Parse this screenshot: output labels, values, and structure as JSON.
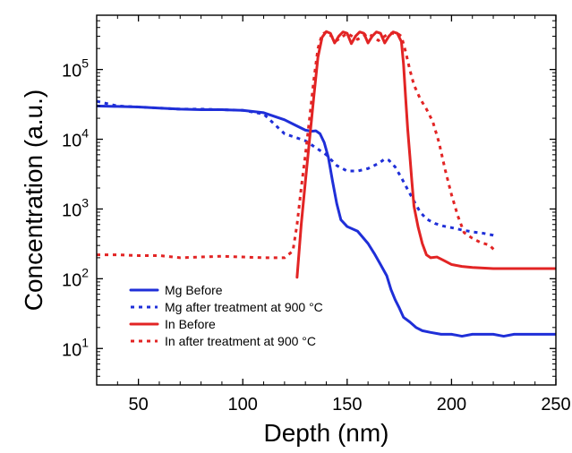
{
  "chart_data": {
    "type": "line",
    "xlabel": "Depth (nm)",
    "ylabel": "Concentration (a.u.)",
    "xlim": [
      30,
      250
    ],
    "ylim": [
      3,
      600000
    ],
    "yscale": "log",
    "grid": false,
    "legend_position": "bottom-left",
    "x_ticks": [
      50,
      100,
      150,
      200,
      250
    ],
    "x_tick_labels": [
      "50",
      "100",
      "150",
      "200",
      "250"
    ],
    "y_ticks": [
      {
        "value": 10,
        "base": "10",
        "exp": "1"
      },
      {
        "value": 100,
        "base": "10",
        "exp": "2"
      },
      {
        "value": 1000,
        "base": "10",
        "exp": "3"
      },
      {
        "value": 10000,
        "base": "10",
        "exp": "4"
      },
      {
        "value": 100000,
        "base": "10",
        "exp": "5"
      }
    ],
    "series": [
      {
        "name": "Mg Before",
        "color": "#1f2fd8",
        "dash": "solid",
        "points": [
          [
            30,
            30000
          ],
          [
            40,
            29500
          ],
          [
            50,
            29000
          ],
          [
            60,
            28000
          ],
          [
            70,
            27000
          ],
          [
            80,
            26500
          ],
          [
            90,
            26500
          ],
          [
            100,
            26000
          ],
          [
            110,
            24000
          ],
          [
            120,
            19000
          ],
          [
            125,
            16000
          ],
          [
            130,
            13500
          ],
          [
            133,
            13000
          ],
          [
            135,
            13200
          ],
          [
            137,
            12000
          ],
          [
            139,
            9000
          ],
          [
            141,
            5500
          ],
          [
            143,
            2500
          ],
          [
            145,
            1200
          ],
          [
            147,
            700
          ],
          [
            150,
            560
          ],
          [
            155,
            480
          ],
          [
            160,
            320
          ],
          [
            163,
            230
          ],
          [
            166,
            160
          ],
          [
            169,
            110
          ],
          [
            171,
            70
          ],
          [
            173,
            50
          ],
          [
            175,
            38
          ],
          [
            177,
            28
          ],
          [
            180,
            24
          ],
          [
            183,
            20
          ],
          [
            186,
            18
          ],
          [
            190,
            17
          ],
          [
            195,
            16
          ],
          [
            200,
            16
          ],
          [
            205,
            15
          ],
          [
            210,
            16
          ],
          [
            215,
            16
          ],
          [
            220,
            16
          ],
          [
            225,
            15
          ],
          [
            230,
            16
          ],
          [
            235,
            16
          ],
          [
            240,
            16
          ],
          [
            245,
            16
          ],
          [
            250,
            16
          ]
        ]
      },
      {
        "name": "Mg after treatment at 900 °C",
        "color": "#1f2fd8",
        "dash": "dotted",
        "points": [
          [
            30,
            35000
          ],
          [
            40,
            30000
          ],
          [
            50,
            29000
          ],
          [
            60,
            28000
          ],
          [
            70,
            27000
          ],
          [
            80,
            27000
          ],
          [
            90,
            26500
          ],
          [
            100,
            26000
          ],
          [
            110,
            23000
          ],
          [
            120,
            12000
          ],
          [
            130,
            9500
          ],
          [
            140,
            6000
          ],
          [
            145,
            4200
          ],
          [
            150,
            3500
          ],
          [
            155,
            3500
          ],
          [
            160,
            3800
          ],
          [
            165,
            4500
          ],
          [
            168,
            5200
          ],
          [
            170,
            5000
          ],
          [
            173,
            4000
          ],
          [
            176,
            2800
          ],
          [
            179,
            1900
          ],
          [
            182,
            1300
          ],
          [
            185,
            900
          ],
          [
            188,
            720
          ],
          [
            192,
            620
          ],
          [
            196,
            570
          ],
          [
            200,
            540
          ],
          [
            205,
            500
          ],
          [
            210,
            470
          ],
          [
            215,
            450
          ],
          [
            220,
            420
          ],
          [
            222,
            400
          ]
        ]
      },
      {
        "name": "In Before",
        "color": "#e22424",
        "dash": "solid",
        "points": [
          [
            126,
            105
          ],
          [
            128,
            600
          ],
          [
            130,
            2500
          ],
          [
            132,
            10000
          ],
          [
            134,
            40000
          ],
          [
            136,
            150000
          ],
          [
            138,
            290000
          ],
          [
            140,
            350000
          ],
          [
            142,
            330000
          ],
          [
            144,
            240000
          ],
          [
            146,
            300000
          ],
          [
            148,
            345000
          ],
          [
            150,
            330000
          ],
          [
            152,
            235000
          ],
          [
            154,
            300000
          ],
          [
            156,
            345000
          ],
          [
            158,
            330000
          ],
          [
            160,
            240000
          ],
          [
            162,
            300000
          ],
          [
            164,
            345000
          ],
          [
            166,
            330000
          ],
          [
            168,
            240000
          ],
          [
            170,
            300000
          ],
          [
            172,
            345000
          ],
          [
            174,
            330000
          ],
          [
            176,
            250000
          ],
          [
            177,
            120000
          ],
          [
            178,
            40000
          ],
          [
            179,
            14000
          ],
          [
            180,
            6000
          ],
          [
            181,
            2500
          ],
          [
            182,
            1100
          ],
          [
            184,
            550
          ],
          [
            186,
            320
          ],
          [
            188,
            220
          ],
          [
            190,
            200
          ],
          [
            193,
            205
          ],
          [
            196,
            185
          ],
          [
            200,
            160
          ],
          [
            205,
            150
          ],
          [
            210,
            145
          ],
          [
            220,
            140
          ],
          [
            230,
            140
          ],
          [
            240,
            140
          ],
          [
            250,
            140
          ]
        ]
      },
      {
        "name": "In after treatment at 900 °C",
        "color": "#e22424",
        "dash": "dotted",
        "points": [
          [
            30,
            220
          ],
          [
            40,
            220
          ],
          [
            50,
            215
          ],
          [
            60,
            215
          ],
          [
            70,
            200
          ],
          [
            80,
            205
          ],
          [
            90,
            210
          ],
          [
            100,
            205
          ],
          [
            110,
            200
          ],
          [
            120,
            200
          ],
          [
            124,
            250
          ],
          [
            126,
            600
          ],
          [
            128,
            2000
          ],
          [
            130,
            6000
          ],
          [
            132,
            20000
          ],
          [
            134,
            70000
          ],
          [
            136,
            200000
          ],
          [
            138,
            320000
          ],
          [
            140,
            345000
          ],
          [
            145,
            260000
          ],
          [
            150,
            330000
          ],
          [
            155,
            270000
          ],
          [
            160,
            330000
          ],
          [
            165,
            260000
          ],
          [
            170,
            330000
          ],
          [
            174,
            330000
          ],
          [
            176,
            300000
          ],
          [
            178,
            180000
          ],
          [
            180,
            100000
          ],
          [
            182,
            60000
          ],
          [
            185,
            38000
          ],
          [
            188,
            27000
          ],
          [
            191,
            18000
          ],
          [
            194,
            9000
          ],
          [
            197,
            3600
          ],
          [
            200,
            1600
          ],
          [
            203,
            800
          ],
          [
            206,
            460
          ],
          [
            210,
            380
          ],
          [
            214,
            330
          ],
          [
            218,
            305
          ],
          [
            221,
            250
          ]
        ]
      }
    ],
    "legend": [
      {
        "label": "Mg Before",
        "color": "#1f2fd8",
        "dash": "solid"
      },
      {
        "label": "Mg after treatment at 900 °C",
        "color": "#1f2fd8",
        "dash": "dotted"
      },
      {
        "label": "In Before",
        "color": "#e22424",
        "dash": "solid"
      },
      {
        "label": "In after treatment at 900 °C",
        "color": "#e22424",
        "dash": "dotted"
      }
    ]
  }
}
